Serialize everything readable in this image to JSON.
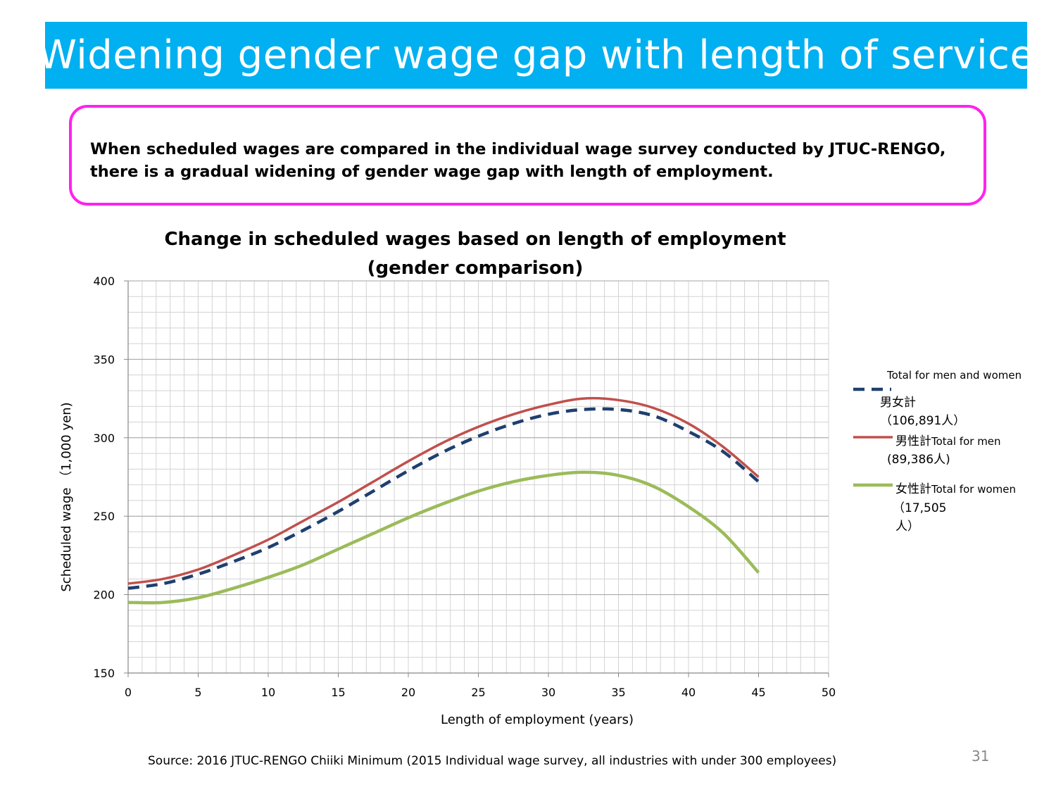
{
  "slide": {
    "title": "Widening gender wage gap with length of service",
    "callout_line1": "When scheduled wages are compared in the individual wage survey conducted by JTUC-RENGO,",
    "callout_line2": "there is a gradual widening of gender wage gap with length of employment.",
    "source": "Source:  2016 JTUC-RENGO Chiiki Minimum (2015 Individual wage survey, all industries with under 300 employees)",
    "page_number": "31"
  },
  "legend": {
    "total_en": "Total for men and women",
    "total_jp": "男女計",
    "total_n": "（106,891人）",
    "men_jp": "男性計",
    "men_en": "Total for men",
    "men_n": "(89,386人)",
    "women_jp": "女性計",
    "women_en": "Total for women",
    "women_n1": "（17,505",
    "women_n2": "人）"
  },
  "colors": {
    "banner": "#00b0f0",
    "callout_border": "#ff22ee",
    "total": "#1f3f6e",
    "men": "#c0504d",
    "women": "#9bbb59",
    "grid": "#d3d3d3",
    "grid_major": "#a6a6a6"
  },
  "chart_data": {
    "type": "line",
    "title_line1": "Change in scheduled wages based on length of employment",
    "title_line2": "(gender comparison)",
    "xlabel": "Length of employment (years)",
    "ylabel": "Scheduled wage （1,000 yen)",
    "xlim": [
      0,
      50
    ],
    "ylim": [
      150,
      400
    ],
    "x_ticks": [
      0,
      5,
      10,
      15,
      20,
      25,
      30,
      35,
      40,
      45,
      50
    ],
    "y_ticks": [
      150,
      200,
      250,
      300,
      350,
      400
    ],
    "grid": true,
    "x": [
      0,
      2.5,
      5,
      7.5,
      10,
      12.5,
      15,
      17.5,
      20,
      22.5,
      25,
      27.5,
      30,
      32.5,
      35,
      37.5,
      40,
      42.5,
      45
    ],
    "series": [
      {
        "name": "Total for men and women (男女計)",
        "style": "dashed",
        "values": [
          204,
          207,
          213,
          221,
          230,
          241,
          253,
          266,
          279,
          291,
          301,
          309,
          315,
          318,
          318,
          314,
          304,
          291,
          272
        ]
      },
      {
        "name": "Total for men (男性計)",
        "style": "solid",
        "values": [
          207,
          210,
          216,
          225,
          235,
          247,
          259,
          272,
          285,
          297,
          307,
          315,
          321,
          325,
          324,
          319,
          309,
          294,
          275
        ]
      },
      {
        "name": "Total for women (女性計)",
        "style": "solid",
        "values": [
          195,
          195,
          198,
          204,
          211,
          219,
          229,
          239,
          249,
          258,
          266,
          272,
          276,
          278,
          276,
          269,
          256,
          239,
          214
        ]
      }
    ]
  }
}
